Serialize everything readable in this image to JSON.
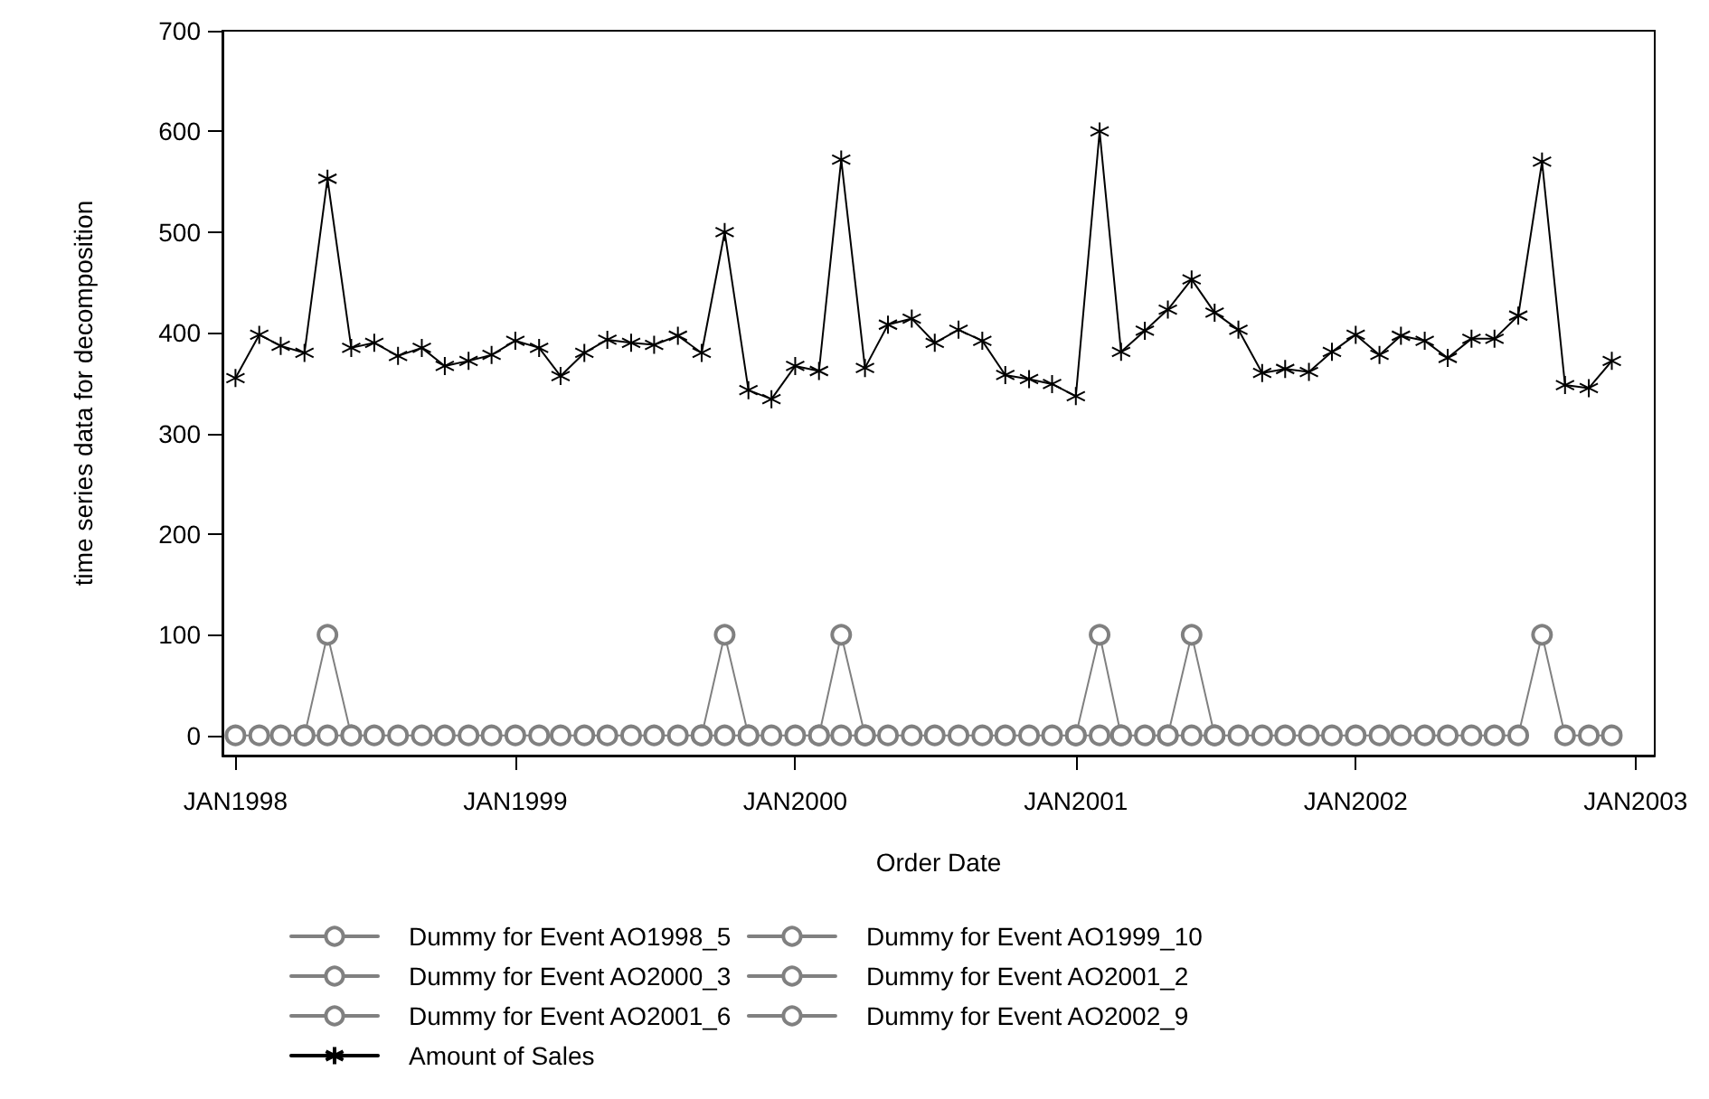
{
  "chart_data": {
    "type": "line",
    "xlabel": "Order Date",
    "ylabel": "time series data for decomposition",
    "x": [
      "1998-01",
      "1998-02",
      "1998-03",
      "1998-04",
      "1998-05",
      "1998-06",
      "1998-07",
      "1998-08",
      "1998-09",
      "1998-10",
      "1998-11",
      "1998-12",
      "1999-01",
      "1999-02",
      "1999-03",
      "1999-04",
      "1999-05",
      "1999-06",
      "1999-07",
      "1999-08",
      "1999-09",
      "1999-10",
      "1999-11",
      "1999-12",
      "2000-01",
      "2000-02",
      "2000-03",
      "2000-04",
      "2000-05",
      "2000-06",
      "2000-07",
      "2000-08",
      "2000-09",
      "2000-10",
      "2000-11",
      "2000-12",
      "2001-01",
      "2001-02",
      "2001-03",
      "2001-04",
      "2001-05",
      "2001-06",
      "2001-07",
      "2001-08",
      "2001-09",
      "2001-10",
      "2001-11",
      "2001-12",
      "2002-01",
      "2002-02",
      "2002-03",
      "2002-04",
      "2002-05",
      "2002-06",
      "2002-07",
      "2002-08",
      "2002-09",
      "2002-10",
      "2002-11",
      "2002-12"
    ],
    "series": [
      {
        "name": "Dummy for Event AO1998_5",
        "color": "#808080",
        "marker": "circle",
        "values": [
          null,
          null,
          null,
          0,
          100,
          0,
          null,
          null,
          null,
          null,
          null,
          null,
          null,
          null,
          null,
          null,
          null,
          null,
          null,
          null,
          null,
          null,
          null,
          null,
          null,
          null,
          null,
          null,
          null,
          null,
          null,
          null,
          null,
          null,
          null,
          null,
          null,
          null,
          null,
          null,
          null,
          null,
          null,
          null,
          null,
          null,
          null,
          null,
          null,
          null,
          null,
          null,
          null,
          null,
          null,
          null,
          null,
          null,
          null,
          null
        ]
      },
      {
        "name": "Dummy for Event AO1999_10",
        "color": "#808080",
        "marker": "circle",
        "values": [
          null,
          null,
          null,
          null,
          null,
          null,
          null,
          null,
          null,
          null,
          null,
          null,
          null,
          null,
          null,
          null,
          null,
          null,
          null,
          null,
          0,
          100,
          0,
          null,
          null,
          null,
          null,
          null,
          null,
          null,
          null,
          null,
          null,
          null,
          null,
          null,
          null,
          null,
          null,
          null,
          null,
          null,
          null,
          null,
          null,
          null,
          null,
          null,
          null,
          null,
          null,
          null,
          null,
          null,
          null,
          null,
          null,
          null,
          null,
          null
        ]
      },
      {
        "name": "Dummy for Event AO2000_3",
        "color": "#808080",
        "marker": "circle",
        "values": [
          null,
          null,
          null,
          null,
          null,
          null,
          null,
          null,
          null,
          null,
          null,
          null,
          null,
          null,
          null,
          null,
          null,
          null,
          null,
          null,
          null,
          null,
          null,
          null,
          null,
          0,
          100,
          0,
          null,
          null,
          null,
          null,
          null,
          null,
          null,
          null,
          null,
          null,
          null,
          null,
          null,
          null,
          null,
          null,
          null,
          null,
          null,
          null,
          null,
          null,
          null,
          null,
          null,
          null,
          null,
          null,
          null,
          null,
          null,
          null
        ]
      },
      {
        "name": "Dummy for Event AO2001_2",
        "color": "#808080",
        "marker": "circle",
        "values": [
          null,
          null,
          null,
          null,
          null,
          null,
          null,
          null,
          null,
          null,
          null,
          null,
          null,
          null,
          null,
          null,
          null,
          null,
          null,
          null,
          null,
          null,
          null,
          null,
          null,
          null,
          null,
          null,
          null,
          null,
          null,
          null,
          null,
          null,
          null,
          null,
          0,
          100,
          0,
          null,
          null,
          null,
          null,
          null,
          null,
          null,
          null,
          null,
          null,
          null,
          null,
          null,
          null,
          null,
          null,
          null,
          null,
          null,
          null,
          null
        ]
      },
      {
        "name": "Dummy for Event AO2001_6",
        "color": "#808080",
        "marker": "circle",
        "values": [
          null,
          null,
          null,
          null,
          null,
          null,
          null,
          null,
          null,
          null,
          null,
          null,
          null,
          null,
          null,
          null,
          null,
          null,
          null,
          null,
          null,
          null,
          null,
          null,
          null,
          null,
          null,
          null,
          null,
          null,
          null,
          null,
          null,
          null,
          null,
          null,
          null,
          null,
          null,
          null,
          0,
          100,
          0,
          null,
          null,
          null,
          null,
          null,
          null,
          null,
          null,
          null,
          null,
          null,
          null,
          null,
          null,
          null,
          null,
          null
        ]
      },
      {
        "name": "Dummy for Event AO2002_9",
        "color": "#808080",
        "marker": "circle",
        "values": [
          0,
          0,
          0,
          0,
          0,
          0,
          0,
          0,
          0,
          0,
          0,
          0,
          0,
          0,
          0,
          0,
          0,
          0,
          0,
          0,
          0,
          0,
          0,
          0,
          0,
          0,
          0,
          0,
          0,
          0,
          0,
          0,
          0,
          0,
          0,
          0,
          0,
          0,
          0,
          0,
          0,
          0,
          0,
          0,
          0,
          0,
          0,
          0,
          0,
          0,
          0,
          0,
          0,
          0,
          0,
          0,
          100,
          0,
          0,
          0
        ]
      },
      {
        "name": "Amount of Sales",
        "color": "#000000",
        "marker": "cross",
        "values": [
          355,
          398,
          387,
          380,
          553,
          385,
          390,
          377,
          385,
          367,
          372,
          378,
          392,
          385,
          357,
          380,
          393,
          390,
          388,
          397,
          380,
          500,
          343,
          334,
          367,
          362,
          572,
          365,
          408,
          414,
          390,
          403,
          392,
          358,
          354,
          349,
          337,
          600,
          381,
          402,
          423,
          453,
          420,
          403,
          360,
          364,
          361,
          381,
          398,
          378,
          397,
          392,
          375,
          394,
          394,
          417,
          570,
          348,
          345,
          372
        ]
      }
    ],
    "xlim": [
      "1997-12-15",
      "2003-01-26"
    ],
    "xticks": [
      {
        "value": "1998-01",
        "label": "JAN1998"
      },
      {
        "value": "1999-01",
        "label": "JAN1999"
      },
      {
        "value": "2000-01",
        "label": "JAN2000"
      },
      {
        "value": "2001-01",
        "label": "JAN2001"
      },
      {
        "value": "2002-01",
        "label": "JAN2002"
      },
      {
        "value": "2003-01",
        "label": "JAN2003"
      }
    ],
    "ylim": [
      -20,
      700
    ],
    "yticks": [
      0,
      100,
      200,
      300,
      400,
      500,
      600,
      700
    ],
    "grid": false,
    "legend": "bottom",
    "line_style": "solid"
  }
}
